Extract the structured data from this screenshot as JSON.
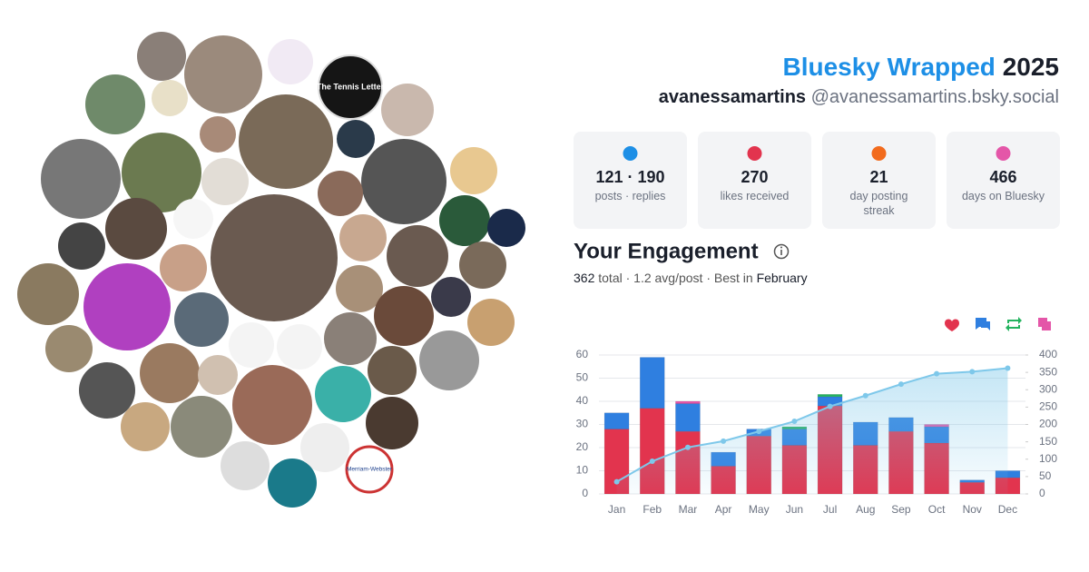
{
  "header": {
    "title": "Bluesky Wrapped",
    "year": "2025",
    "display_name": "avanessamartins",
    "handle": "@avanessamartins.bsky.social"
  },
  "avatar_texts": [
    "The Tennis Letter",
    "Merriam-Webster"
  ],
  "stats": [
    {
      "value": "121 · 190",
      "label": "posts · replies"
    },
    {
      "value": "270",
      "label": "likes received"
    },
    {
      "value": "21",
      "label": "day posting streak"
    },
    {
      "value": "466",
      "label": "days on Bluesky"
    }
  ],
  "engagement": {
    "title": "Your Engagement",
    "total": "362",
    "total_text": "total · 1.2 avg/post · Best in",
    "best": "February"
  },
  "chart_data": {
    "type": "bar",
    "categories": [
      "Jan",
      "Feb",
      "Mar",
      "Apr",
      "May",
      "Jun",
      "Jul",
      "Aug",
      "Sep",
      "Oct",
      "Nov",
      "Dec"
    ],
    "series": [
      {
        "color": "#e2344e",
        "values": [
          28,
          37,
          27,
          12,
          25,
          21,
          38,
          21,
          27,
          22,
          5,
          7
        ]
      },
      {
        "color": "#2f7fe0",
        "values": [
          7,
          22,
          12,
          6,
          3,
          7,
          4,
          10,
          6,
          7,
          1,
          3
        ]
      },
      {
        "color": "#24b35f",
        "values": [
          0,
          0,
          0,
          0,
          0,
          1,
          1,
          0,
          0,
          0,
          0,
          0
        ]
      },
      {
        "color": "#e456a8",
        "values": [
          0,
          0,
          1,
          0,
          0,
          0,
          0,
          0,
          0,
          1,
          0,
          0
        ]
      },
      {
        "color": "#7ec8ea",
        "type": "line",
        "axis": "y2",
        "values": [
          35,
          94,
          134,
          152,
          180,
          209,
          252,
          283,
          316,
          346,
          352,
          362
        ]
      }
    ],
    "ylim": [
      0,
      60
    ],
    "yticks": [
      0,
      10,
      20,
      30,
      40,
      50,
      60
    ],
    "y2lim": [
      0,
      400
    ],
    "y2ticks": [
      0,
      50,
      100,
      150,
      200,
      250,
      300,
      350,
      400
    ],
    "grid": true
  }
}
